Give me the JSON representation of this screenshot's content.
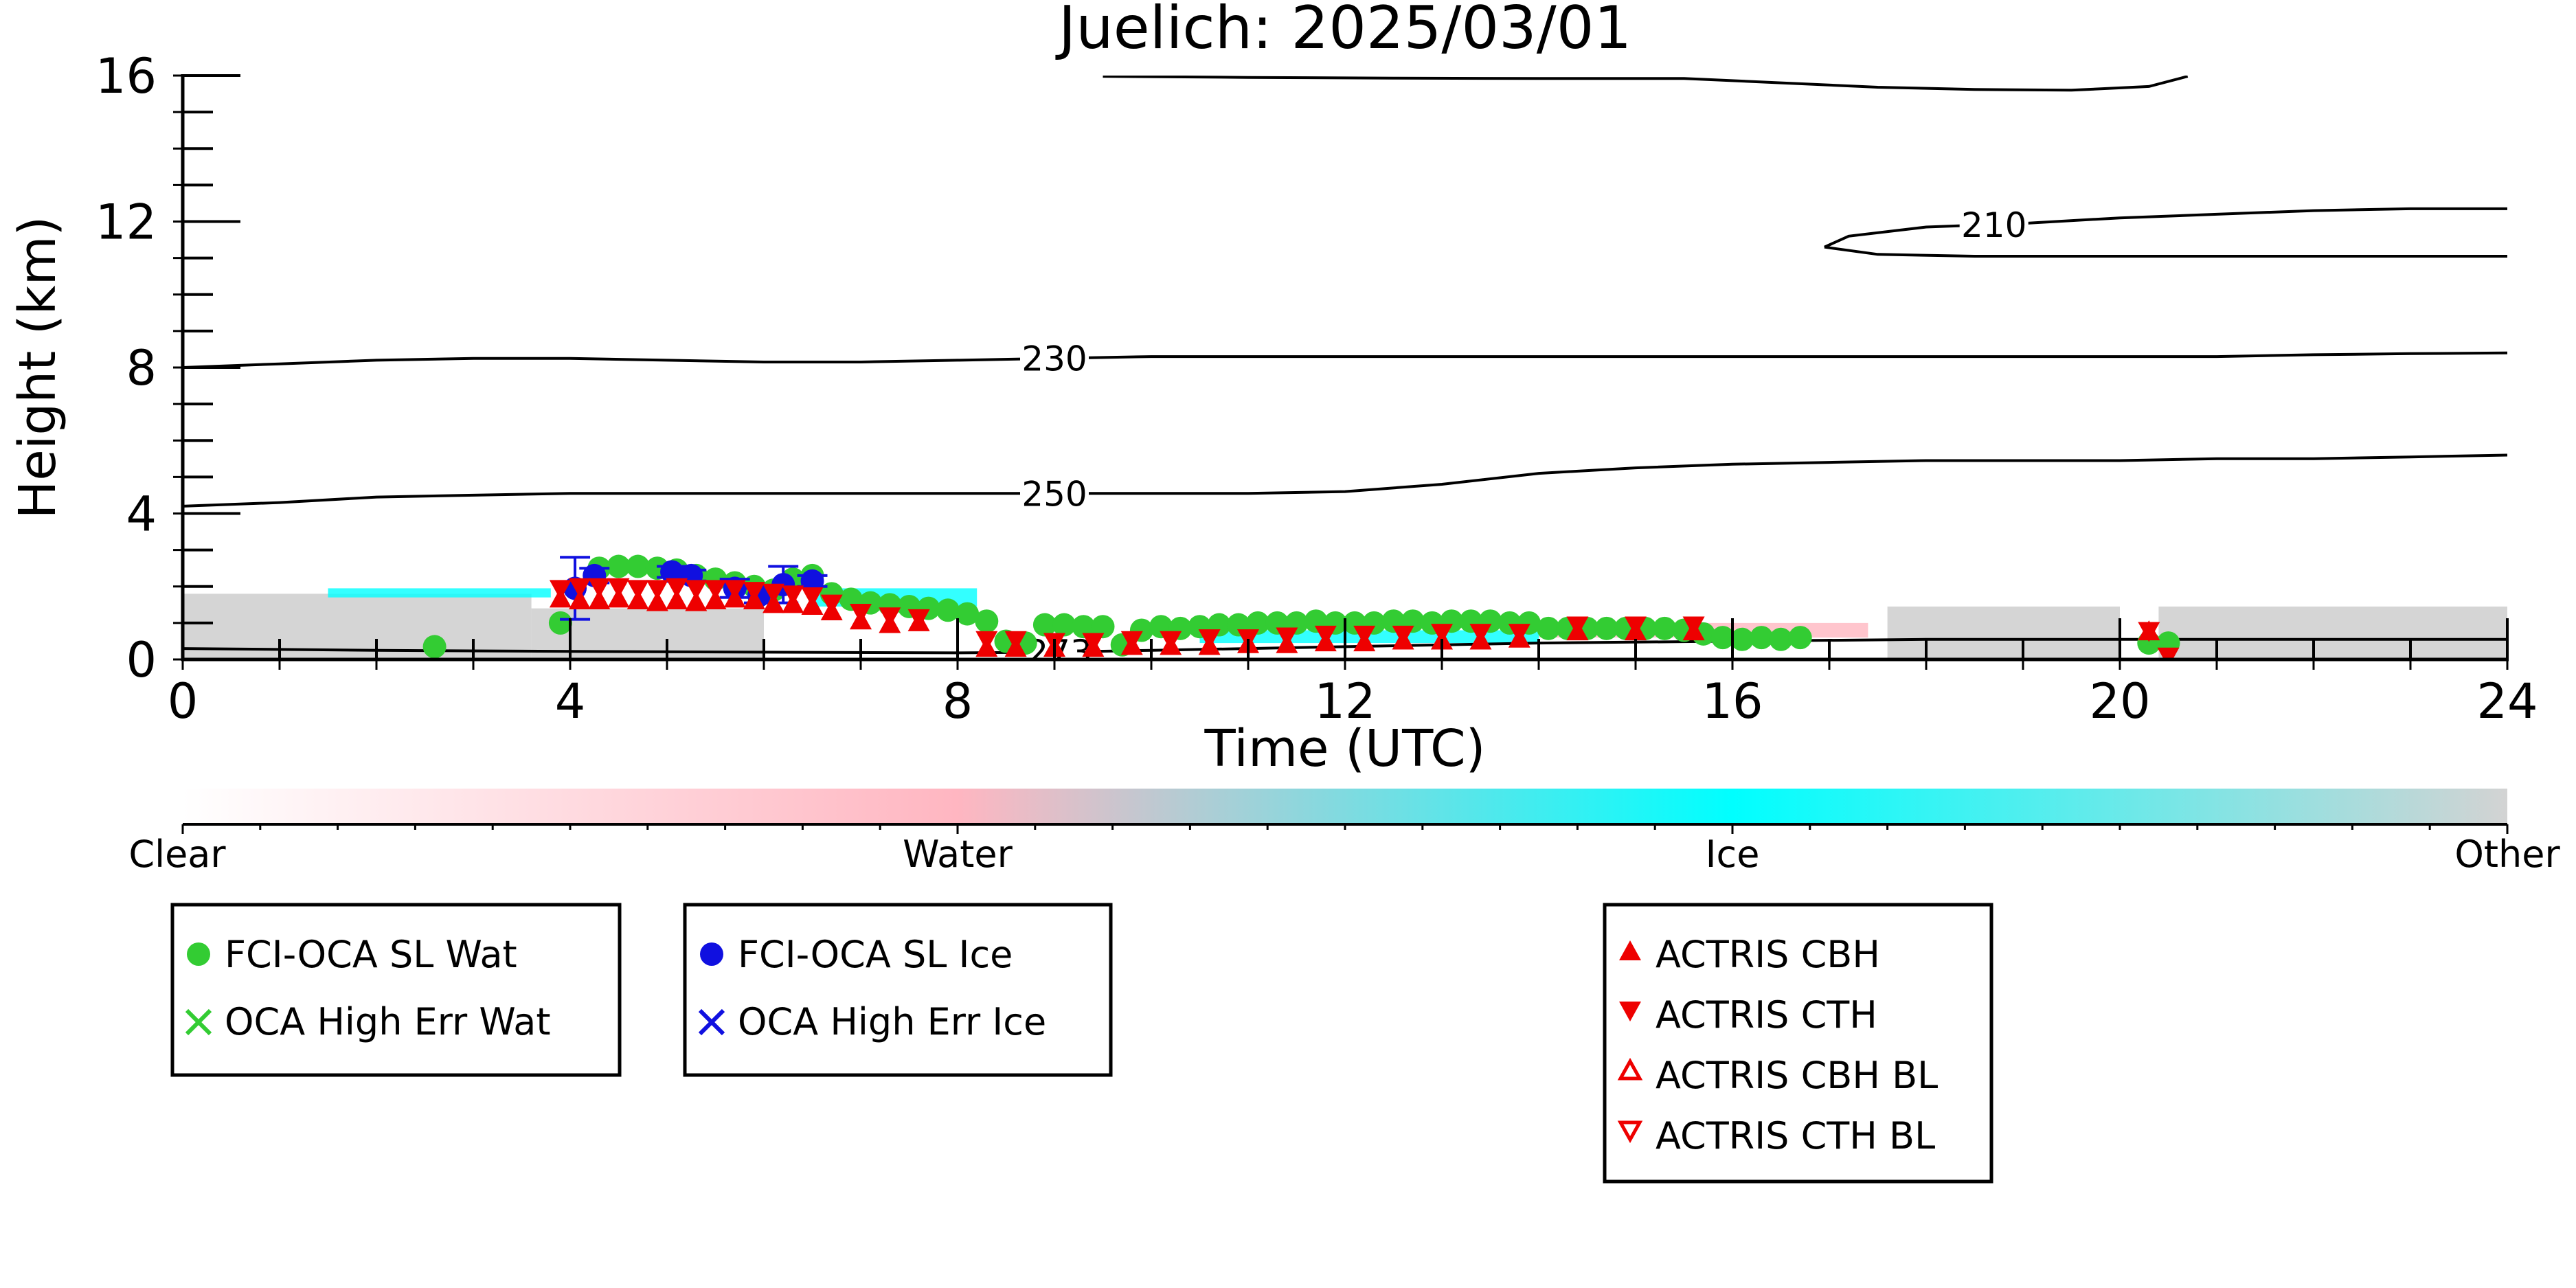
{
  "chart_data": {
    "type": "scatter",
    "title": "Juelich: 2025/03/01",
    "xlabel": "Time (UTC)",
    "ylabel": "Height (km)",
    "xlim": [
      0,
      24
    ],
    "ylim": [
      0,
      16
    ],
    "x_ticks": [
      "0",
      "4",
      "8",
      "12",
      "16",
      "20",
      "24"
    ],
    "y_ticks": [
      "0",
      "4",
      "8",
      "12",
      "16"
    ],
    "colorbar": {
      "labels": [
        "Clear",
        "Water",
        "Ice",
        "Other"
      ],
      "colors": [
        "#ffffff",
        "#ffb6c1",
        "#00ffff",
        "#d3d3d3"
      ]
    },
    "contours": [
      {
        "label": "210",
        "x": [
          16.95,
          17.2,
          18.0,
          19.0,
          20.0,
          21.0,
          22.0,
          23.0,
          24.0
        ],
        "y": [
          11.3,
          11.6,
          11.85,
          11.95,
          12.1,
          12.2,
          12.3,
          12.35,
          12.35
        ]
      },
      {
        "label": "210",
        "x": [
          16.95,
          17.5,
          18.5,
          19.5,
          20.5,
          21.5,
          22.5,
          23.5,
          24.0
        ],
        "y": [
          11.3,
          11.1,
          11.05,
          11.05,
          11.05,
          11.05,
          11.05,
          11.05,
          11.05
        ]
      },
      {
        "label": "",
        "x": [
          9.5,
          11.0,
          12.5,
          14.0,
          15.5,
          16.5,
          17.5,
          18.5,
          19.5,
          20.3,
          20.7
        ],
        "y": [
          15.98,
          15.95,
          15.93,
          15.92,
          15.92,
          15.8,
          15.68,
          15.62,
          15.6,
          15.7,
          15.98
        ]
      },
      {
        "label": "230",
        "x": [
          0,
          1,
          2,
          3,
          4,
          5,
          6,
          7,
          8,
          9,
          10,
          11,
          12,
          13,
          14,
          15,
          16,
          17,
          18,
          19,
          20,
          21,
          22,
          23,
          24
        ],
        "y": [
          8.0,
          8.1,
          8.2,
          8.25,
          8.25,
          8.2,
          8.15,
          8.15,
          8.2,
          8.25,
          8.3,
          8.3,
          8.3,
          8.3,
          8.3,
          8.3,
          8.3,
          8.3,
          8.3,
          8.3,
          8.3,
          8.3,
          8.35,
          8.38,
          8.4
        ]
      },
      {
        "label": "250",
        "x": [
          0,
          1,
          2,
          3,
          4,
          5,
          6,
          7,
          8,
          9,
          10,
          11,
          12,
          13,
          14,
          15,
          16,
          17,
          18,
          19,
          20,
          21,
          22,
          23,
          24
        ],
        "y": [
          4.2,
          4.3,
          4.45,
          4.5,
          4.55,
          4.55,
          4.55,
          4.55,
          4.55,
          4.55,
          4.55,
          4.55,
          4.6,
          4.8,
          5.1,
          5.25,
          5.35,
          5.4,
          5.45,
          5.45,
          5.45,
          5.5,
          5.5,
          5.55,
          5.6
        ]
      },
      {
        "label": "273",
        "x": [
          0,
          2,
          4,
          6,
          8,
          9,
          10,
          11,
          12,
          14,
          16,
          18,
          20,
          22,
          24
        ],
        "y": [
          0.3,
          0.25,
          0.22,
          0.2,
          0.18,
          0.2,
          0.25,
          0.3,
          0.35,
          0.45,
          0.5,
          0.55,
          0.55,
          0.55,
          0.55
        ]
      }
    ],
    "series": [
      {
        "name": "FCI-OCA SL Wat",
        "color": "#33cc33",
        "marker": "circle",
        "x": [
          2.6,
          3.9,
          4.3,
          4.5,
          4.7,
          4.9,
          5.1,
          5.3,
          5.5,
          5.7,
          5.9,
          6.1,
          6.3,
          6.5,
          6.7,
          6.9,
          7.1,
          7.3,
          7.5,
          7.7,
          7.9,
          8.1,
          8.3,
          8.5,
          8.7,
          8.9,
          9.1,
          9.3,
          9.5,
          9.7,
          9.9,
          10.1,
          10.3,
          10.5,
          10.7,
          10.9,
          11.1,
          11.3,
          11.5,
          11.7,
          11.9,
          12.1,
          12.3,
          12.5,
          12.7,
          12.9,
          13.1,
          13.3,
          13.5,
          13.7,
          13.9,
          14.1,
          14.3,
          14.5,
          14.7,
          14.9,
          15.1,
          15.3,
          15.5,
          15.7,
          15.9,
          16.1,
          16.3,
          16.5,
          16.7,
          20.3,
          20.5
        ],
        "y": [
          0.35,
          1.0,
          2.5,
          2.55,
          2.55,
          2.5,
          2.45,
          2.3,
          2.2,
          2.1,
          2.0,
          1.9,
          2.2,
          2.3,
          1.8,
          1.65,
          1.55,
          1.5,
          1.45,
          1.4,
          1.35,
          1.25,
          1.05,
          0.5,
          0.45,
          0.95,
          0.95,
          0.9,
          0.9,
          0.4,
          0.8,
          0.9,
          0.85,
          0.9,
          0.95,
          0.95,
          1.0,
          1.0,
          1.0,
          1.05,
          1.0,
          1.0,
          1.0,
          1.05,
          1.05,
          1.0,
          1.05,
          1.05,
          1.05,
          1.0,
          1.0,
          0.85,
          0.85,
          0.85,
          0.85,
          0.85,
          0.85,
          0.85,
          0.8,
          0.7,
          0.6,
          0.55,
          0.6,
          0.55,
          0.6,
          0.45,
          0.45
        ]
      },
      {
        "name": "OCA High Err Wat",
        "color": "#33cc33",
        "marker": "x",
        "x": [],
        "y": []
      },
      {
        "name": "FCI-OCA SL Ice",
        "color": "#1010e0",
        "marker": "circle",
        "x": [
          4.05,
          4.25,
          5.05,
          5.25,
          5.7,
          5.95,
          6.2,
          6.5
        ],
        "y": [
          1.95,
          2.3,
          2.4,
          2.3,
          1.95,
          1.75,
          2.05,
          2.15
        ],
        "y_err": [
          0.85,
          0.2,
          0.15,
          0.15,
          0.25,
          0.2,
          0.5,
          0.15
        ]
      },
      {
        "name": "OCA High Err Ice",
        "color": "#1010e0",
        "marker": "x",
        "x": [],
        "y": []
      },
      {
        "name": "ACTRIS CBH",
        "color": "#ee0000",
        "marker": "triangle-up",
        "x": [
          3.9,
          4.1,
          4.3,
          4.5,
          4.7,
          4.9,
          5.1,
          5.3,
          5.5,
          5.7,
          5.9,
          6.1,
          6.3,
          6.5,
          6.7,
          7.0,
          7.3,
          7.6,
          8.3,
          8.6,
          9.0,
          9.4,
          9.8,
          10.2,
          10.6,
          11.0,
          11.4,
          11.8,
          12.2,
          12.6,
          13.0,
          13.4,
          13.8,
          14.4,
          15.0,
          15.6,
          20.3
        ],
        "y": [
          1.65,
          1.6,
          1.6,
          1.65,
          1.6,
          1.55,
          1.6,
          1.55,
          1.6,
          1.65,
          1.6,
          1.5,
          1.5,
          1.45,
          1.3,
          1.05,
          0.95,
          1.0,
          0.3,
          0.3,
          0.3,
          0.3,
          0.35,
          0.35,
          0.35,
          0.4,
          0.4,
          0.45,
          0.45,
          0.5,
          0.5,
          0.5,
          0.55,
          0.75,
          0.75,
          0.75,
          0.75
        ]
      },
      {
        "name": "ACTRIS CTH",
        "color": "#ee0000",
        "marker": "triangle-down",
        "x": [
          3.9,
          4.1,
          4.3,
          4.5,
          4.7,
          4.9,
          5.1,
          5.3,
          5.5,
          5.7,
          5.9,
          6.1,
          6.3,
          6.5,
          6.7,
          7.0,
          7.3,
          7.6,
          8.3,
          8.6,
          9.0,
          9.4,
          9.8,
          10.2,
          10.6,
          11.0,
          11.4,
          11.8,
          12.2,
          12.6,
          13.0,
          13.4,
          13.8,
          14.4,
          15.0,
          15.6,
          20.3,
          20.5
        ],
        "y": [
          1.95,
          2.0,
          2.0,
          2.0,
          1.95,
          1.95,
          2.0,
          1.95,
          1.95,
          1.95,
          1.9,
          1.85,
          1.8,
          1.75,
          1.55,
          1.3,
          1.2,
          1.15,
          0.55,
          0.55,
          0.5,
          0.5,
          0.55,
          0.55,
          0.6,
          0.6,
          0.65,
          0.7,
          0.7,
          0.7,
          0.75,
          0.75,
          0.75,
          0.95,
          0.95,
          0.95,
          0.8,
          0.1
        ]
      },
      {
        "name": "ACTRIS CBH BL",
        "color": "#ee0000",
        "marker": "triangle-up-open",
        "x": [],
        "y": []
      },
      {
        "name": "ACTRIS CTH BL",
        "color": "#ee0000",
        "marker": "triangle-down-open",
        "x": [],
        "y": []
      }
    ],
    "background_classes": [
      {
        "class": "Other",
        "x_start": 0.0,
        "x_end": 3.6,
        "y_low": 0.0,
        "y_high": 1.8
      },
      {
        "class": "Other",
        "x_start": 3.6,
        "x_end": 6.0,
        "y_low": 0.0,
        "y_high": 1.4
      },
      {
        "class": "Other",
        "x_start": 17.6,
        "x_end": 20.0,
        "y_low": 0.0,
        "y_high": 1.45
      },
      {
        "class": "Other",
        "x_start": 20.4,
        "x_end": 24.0,
        "y_low": 0.0,
        "y_high": 1.45
      },
      {
        "class": "Ice",
        "x_start": 1.5,
        "x_end": 3.8,
        "y_low": 1.7,
        "y_high": 1.95
      },
      {
        "class": "Ice",
        "x_start": 6.5,
        "x_end": 8.2,
        "y_low": 1.45,
        "y_high": 1.95
      },
      {
        "class": "Ice",
        "x_start": 10.5,
        "x_end": 14.0,
        "y_low": 0.45,
        "y_high": 0.8
      },
      {
        "class": "Water",
        "x_start": 14.0,
        "x_end": 17.4,
        "y_low": 0.6,
        "y_high": 1.0
      }
    ]
  }
}
